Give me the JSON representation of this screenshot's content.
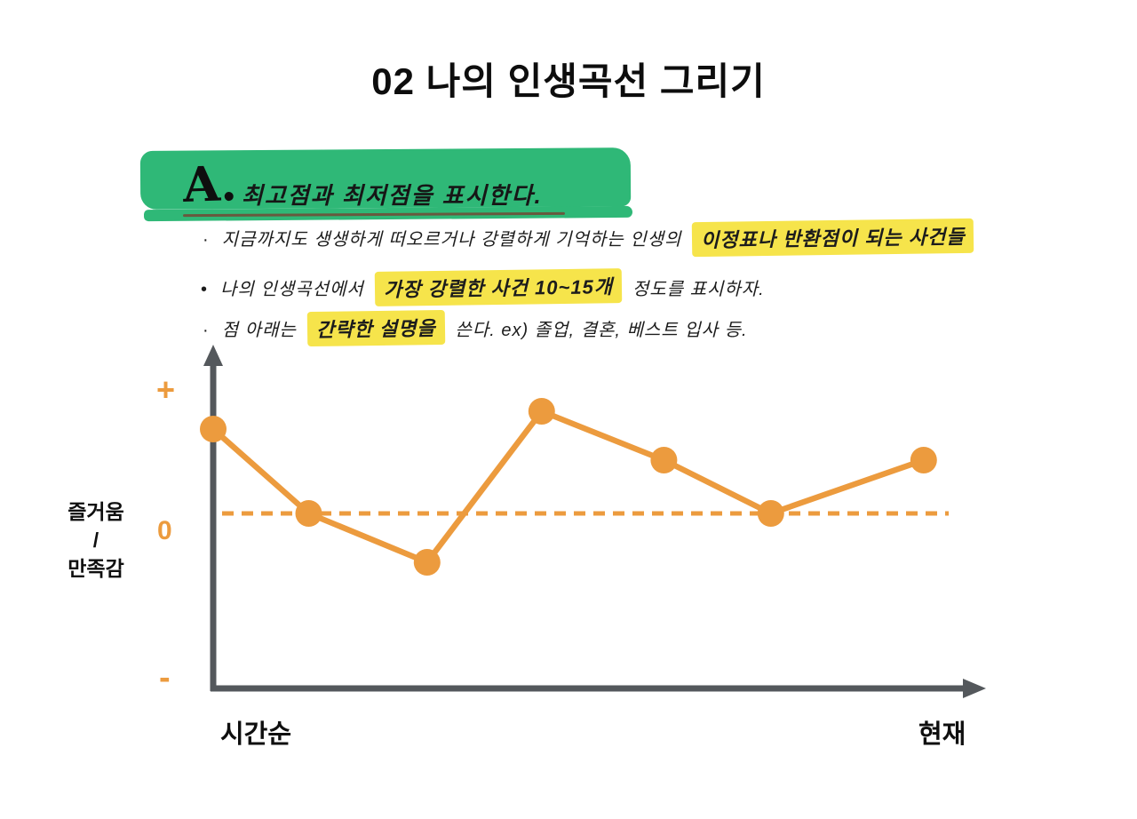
{
  "title": "02  나의 인생곡선 그리기",
  "note": {
    "heading_letter": "A.",
    "heading_text": "최고점과 최저점을 표시한다.",
    "bullets": [
      {
        "marker": "·",
        "pre": "지금까지도 생생하게 떠오르거나 강렬하게 기억하는 인생의",
        "highlight": "이정표나 반환점이 되는 사건들",
        "post": ""
      },
      {
        "marker": "•",
        "pre": "나의 인생곡선에서",
        "highlight": "가장 강렬한 사건 10~15개",
        "post": "정도를 표시하자."
      },
      {
        "marker": "·",
        "pre": "점 아래는",
        "highlight": "간략한 설명을",
        "post": "쓴다.   ex) 졸업, 결혼, 베스트 입사 등."
      }
    ]
  },
  "chart_data": {
    "type": "line",
    "title": "",
    "xlabel": "",
    "ylabel": "즐거움 / 만족감",
    "ylabel_lines": [
      "즐거움",
      "/",
      "만족감"
    ],
    "y_ticks": [
      "+",
      "0",
      "-"
    ],
    "x_start_label": "시간순",
    "x_end_label": "현재",
    "grid": false,
    "legend": false,
    "zero_dashed_line": true,
    "x_range": [
      0,
      1
    ],
    "y_range": [
      -1.9,
      1.4
    ],
    "points": [
      {
        "x": 0.0,
        "y": 0.95
      },
      {
        "x": 0.125,
        "y": 0.0
      },
      {
        "x": 0.28,
        "y": -0.55
      },
      {
        "x": 0.43,
        "y": 1.15
      },
      {
        "x": 0.59,
        "y": 0.6
      },
      {
        "x": 0.73,
        "y": 0.0
      },
      {
        "x": 0.93,
        "y": 0.6
      }
    ]
  },
  "colors": {
    "orange": "#EC9B3E",
    "green_highlight": "#2FB877",
    "yellow_highlight": "#F6E44B",
    "axis_gray": "#54585C"
  }
}
